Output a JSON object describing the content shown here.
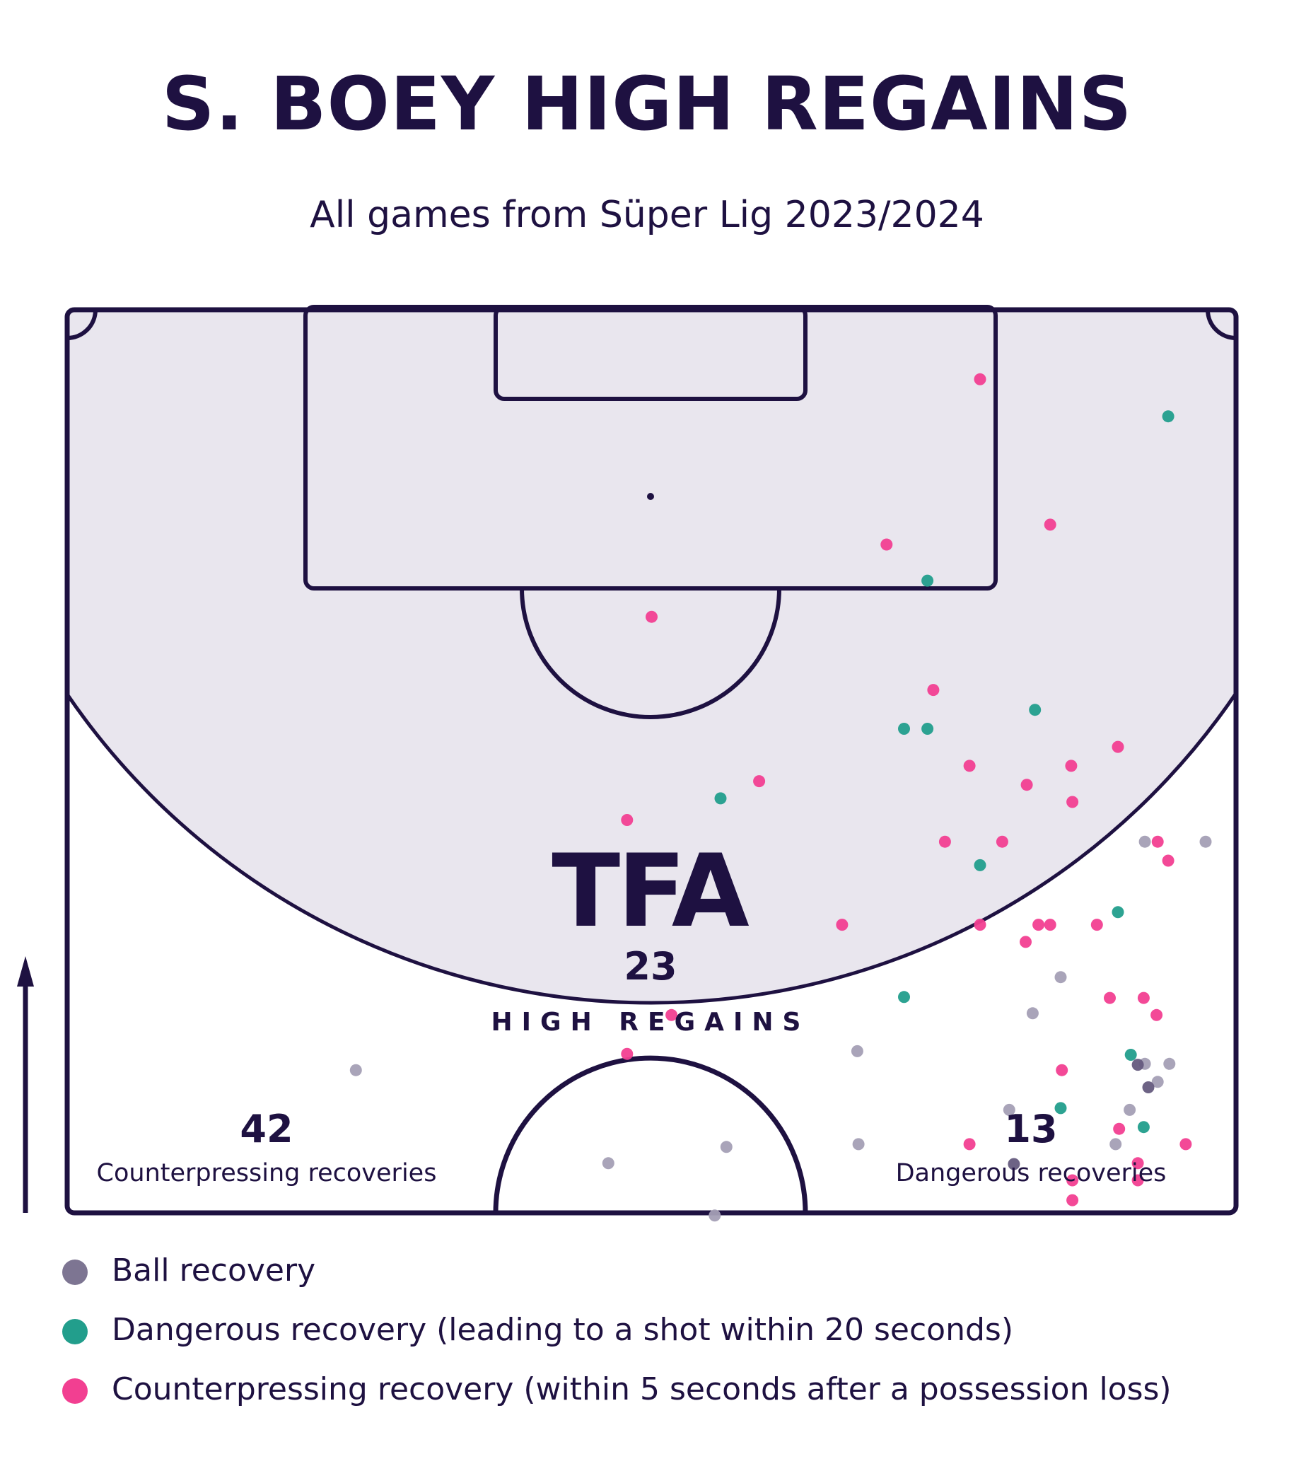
{
  "title": "S. BOEY HIGH REGAINS",
  "subtitle": "All games from Süper Lig 2023/2024",
  "logo": "TFA",
  "center_stat": {
    "value": "23",
    "label": "HIGH REGAINS"
  },
  "left_stat": {
    "value": "42",
    "label": "Counterpressing recoveries"
  },
  "right_stat": {
    "value": "13",
    "label": "Dangerous recoveries"
  },
  "colors": {
    "navy": "#1e1141",
    "zone_fill": "#e9e6ee",
    "ball": "#a49fb5",
    "ball_dark": "#655b7e",
    "dangerous": "#229e8c",
    "counterpress": "#f23f91"
  },
  "legend": [
    {
      "label": "Ball recovery",
      "color": "#7d7592"
    },
    {
      "label": "Dangerous recovery (leading to a shot within 20 seconds)",
      "color": "#229e8c"
    },
    {
      "label": "Counterpressing recovery (within 5 seconds after a possession loss)",
      "color": "#f23f91"
    }
  ],
  "chart_data": {
    "type": "scatter",
    "title": "S. BOEY HIGH REGAINS",
    "subtitle": "All games from Süper Lig 2023/2024",
    "x_range": [
      0,
      100
    ],
    "y_range": [
      0,
      100
    ],
    "series": [
      {
        "name": "Ball recovery",
        "points": [
          [
            92.2,
            41.1
          ],
          [
            97.4,
            41.1
          ],
          [
            85.0,
            26.1
          ],
          [
            82.6,
            22.1
          ],
          [
            67.6,
            17.9
          ],
          [
            92.2,
            16.5
          ],
          [
            94.3,
            16.5
          ],
          [
            93.3,
            14.5
          ],
          [
            80.6,
            11.4
          ],
          [
            90.9,
            11.4
          ],
          [
            89.7,
            7.6
          ],
          [
            67.7,
            7.6
          ],
          [
            56.4,
            7.3
          ],
          [
            24.7,
            15.8
          ],
          [
            46.3,
            5.5
          ],
          [
            55.4,
            -0.3
          ]
        ]
      },
      {
        "name": "Ball recovery (dark)",
        "points": [
          [
            91.6,
            16.4
          ],
          [
            92.5,
            13.9
          ],
          [
            81.0,
            5.4
          ]
        ]
      },
      {
        "name": "Dangerous recovery",
        "points": [
          [
            94.2,
            88.2
          ],
          [
            73.6,
            70.0
          ],
          [
            82.8,
            55.7
          ],
          [
            71.6,
            53.6
          ],
          [
            73.6,
            53.6
          ],
          [
            55.9,
            45.9
          ],
          [
            78.1,
            38.5
          ],
          [
            89.9,
            33.3
          ],
          [
            71.6,
            23.9
          ],
          [
            91.0,
            17.5
          ],
          [
            85.0,
            11.6
          ],
          [
            92.1,
            9.5
          ]
        ]
      },
      {
        "name": "Counterpressing recovery",
        "points": [
          [
            78.1,
            92.3
          ],
          [
            84.1,
            76.2
          ],
          [
            70.1,
            74.0
          ],
          [
            50.0,
            66.0
          ],
          [
            74.1,
            57.9
          ],
          [
            59.2,
            47.8
          ],
          [
            89.9,
            51.6
          ],
          [
            77.2,
            49.5
          ],
          [
            85.9,
            49.5
          ],
          [
            82.1,
            47.4
          ],
          [
            86.0,
            45.5
          ],
          [
            47.9,
            43.5
          ],
          [
            75.1,
            41.1
          ],
          [
            80.0,
            41.1
          ],
          [
            93.3,
            41.1
          ],
          [
            94.2,
            39.0
          ],
          [
            66.3,
            31.9
          ],
          [
            78.1,
            31.9
          ],
          [
            83.1,
            31.9
          ],
          [
            84.1,
            31.9
          ],
          [
            88.1,
            31.9
          ],
          [
            82.0,
            30.0
          ],
          [
            89.2,
            23.8
          ],
          [
            92.1,
            23.8
          ],
          [
            93.2,
            21.9
          ],
          [
            51.7,
            21.9
          ],
          [
            47.9,
            17.6
          ],
          [
            85.1,
            15.8
          ],
          [
            90.0,
            9.3
          ],
          [
            77.2,
            7.6
          ],
          [
            95.7,
            7.6
          ],
          [
            91.6,
            5.5
          ],
          [
            86.0,
            3.6
          ],
          [
            91.6,
            3.6
          ],
          [
            86.0,
            1.4
          ]
        ]
      }
    ]
  }
}
